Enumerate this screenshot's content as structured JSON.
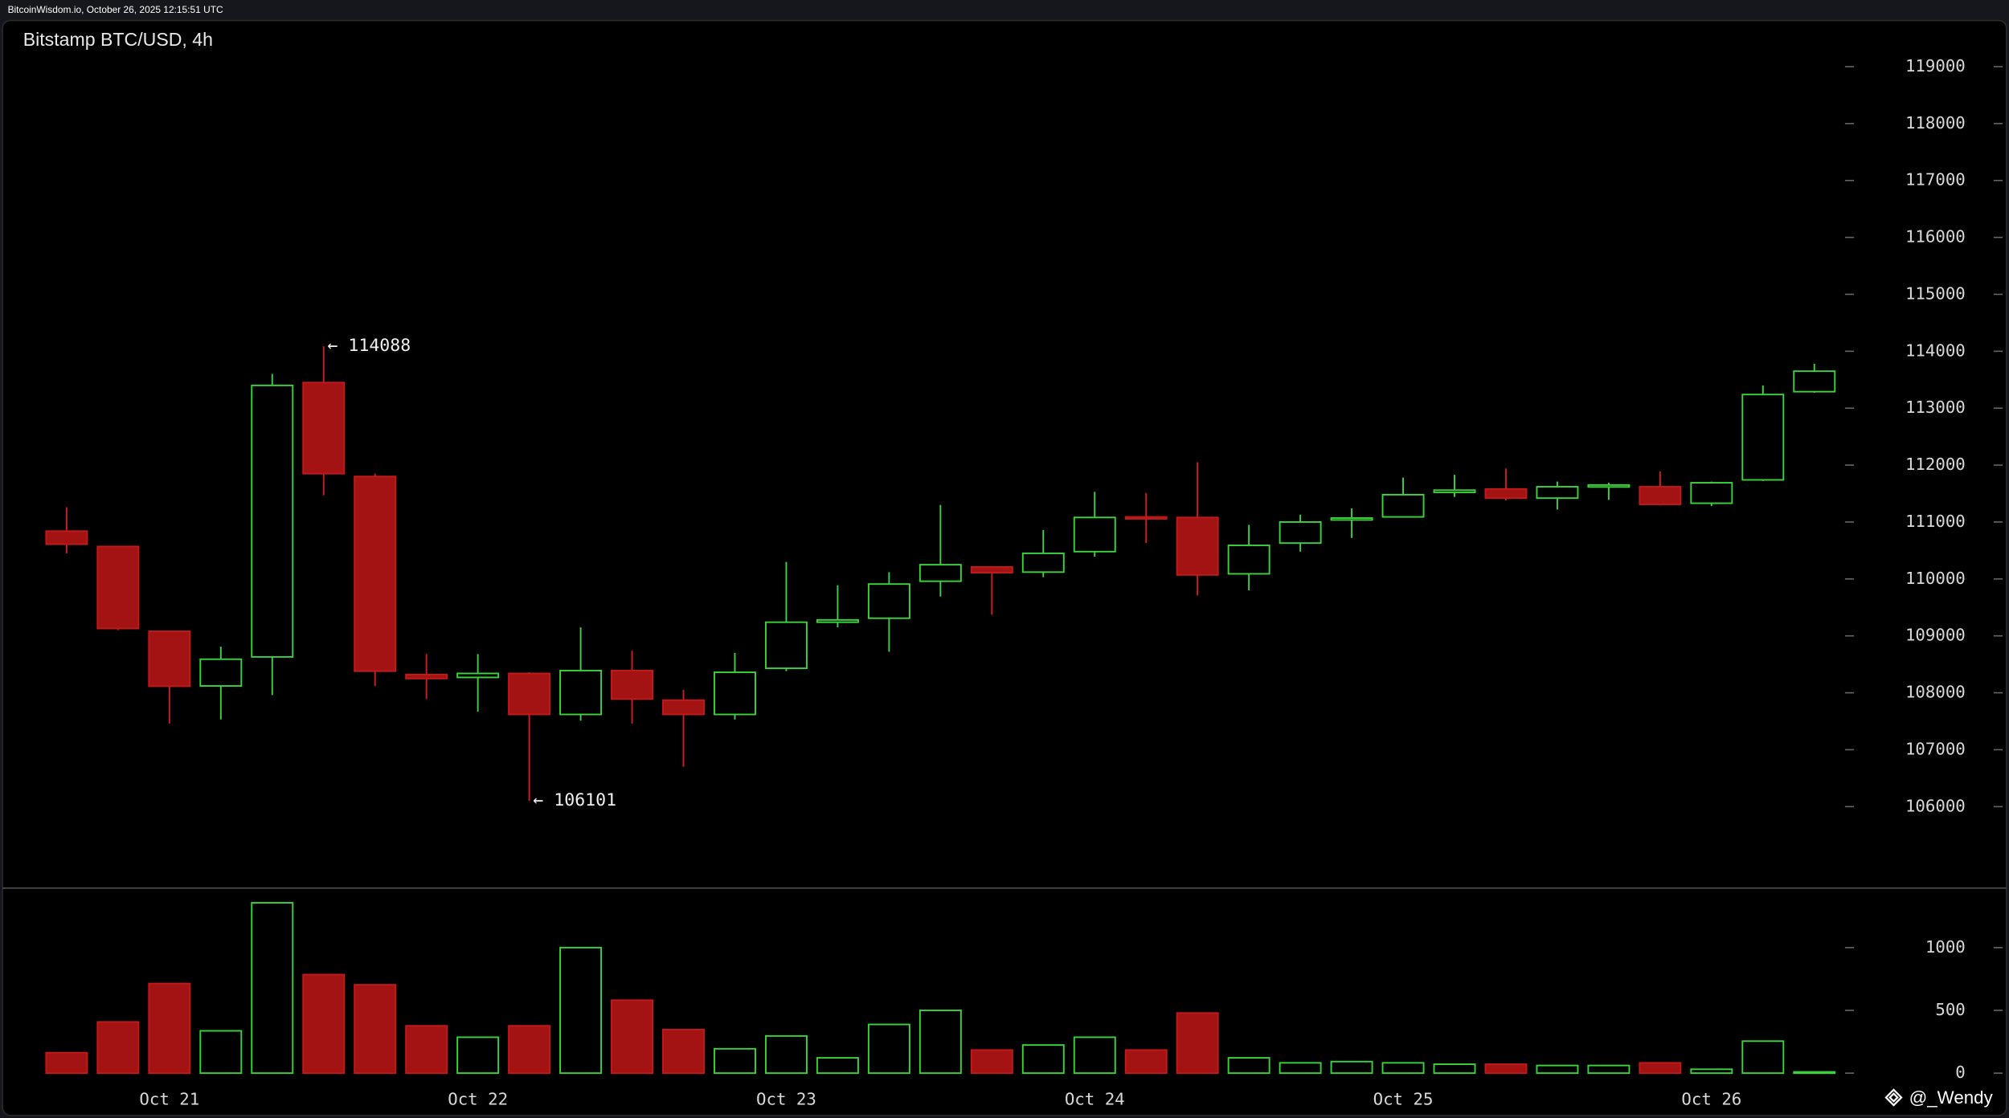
{
  "header": "BitcoinWisdom.io, October 26, 2025 12:15:51 UTC",
  "watermark": "@_Wendy",
  "chart_data": [
    {
      "type": "candlestick",
      "title": "Bitstamp BTC/USD, 4h",
      "categories": [
        null,
        null,
        "Oct 21",
        null,
        null,
        null,
        null,
        null,
        "Oct 22",
        null,
        null,
        null,
        null,
        null,
        "Oct 23",
        null,
        null,
        null,
        null,
        null,
        "Oct 24",
        null,
        null,
        null,
        null,
        null,
        "Oct 25",
        null,
        null,
        null,
        null,
        null,
        "Oct 26",
        null,
        null
      ],
      "open": [
        110840,
        110570,
        109080,
        108120,
        108630,
        113450,
        111800,
        108320,
        108270,
        108340,
        107620,
        108390,
        107870,
        107620,
        108430,
        109240,
        109310,
        109960,
        110210,
        110120,
        110480,
        111090,
        111080,
        110090,
        110630,
        111040,
        111090,
        111520,
        111580,
        111420,
        111630,
        111620,
        111330,
        111740,
        113290
      ],
      "high": [
        111260,
        110580,
        109090,
        108810,
        113600,
        114088,
        111850,
        108680,
        108680,
        108360,
        109150,
        108740,
        108050,
        108700,
        110300,
        109890,
        110120,
        111300,
        110220,
        110860,
        111530,
        111510,
        112050,
        110950,
        111130,
        111240,
        111780,
        111830,
        111940,
        111710,
        111690,
        111890,
        111710,
        113400,
        113780
      ],
      "low": [
        110450,
        109100,
        107460,
        107530,
        107960,
        111470,
        108120,
        107890,
        107670,
        106101,
        107510,
        107460,
        106700,
        107530,
        108380,
        109150,
        108720,
        109690,
        109370,
        110030,
        110390,
        110630,
        109710,
        109800,
        110480,
        110720,
        111080,
        111440,
        111380,
        111220,
        111390,
        111290,
        111280,
        111720,
        113270
      ],
      "close": [
        110610,
        109130,
        108115,
        108590,
        113400,
        111850,
        108380,
        108250,
        108340,
        107620,
        108390,
        107890,
        107620,
        108360,
        109240,
        109280,
        109910,
        110250,
        110110,
        110450,
        111080,
        111070,
        110070,
        110590,
        111000,
        111070,
        111480,
        111560,
        111420,
        111620,
        111650,
        111310,
        111690,
        113240,
        113650
      ],
      "up_color": "#3bd23b",
      "down_color": "#a31313",
      "ylim": [
        104580,
        119810
      ],
      "yticks": [
        106000,
        107000,
        108000,
        109000,
        110000,
        111000,
        112000,
        113000,
        114000,
        115000,
        116000,
        117000,
        118000,
        119000
      ],
      "annotations": [
        {
          "value": 114088,
          "label": "← 114088"
        },
        {
          "value": 106101,
          "label": "← 106101"
        }
      ]
    },
    {
      "type": "bar",
      "values": [
        163,
        408,
        714,
        337,
        1357,
        785,
        704,
        377,
        286,
        377,
        1000,
        581,
        347,
        194,
        296,
        122,
        388,
        500,
        184,
        224,
        286,
        184,
        479,
        122,
        82,
        92,
        82,
        71,
        71,
        61,
        61,
        82,
        31,
        255,
        10
      ],
      "ylim": [
        0,
        1469
      ],
      "yticks": [
        0,
        500,
        1000
      ]
    }
  ]
}
